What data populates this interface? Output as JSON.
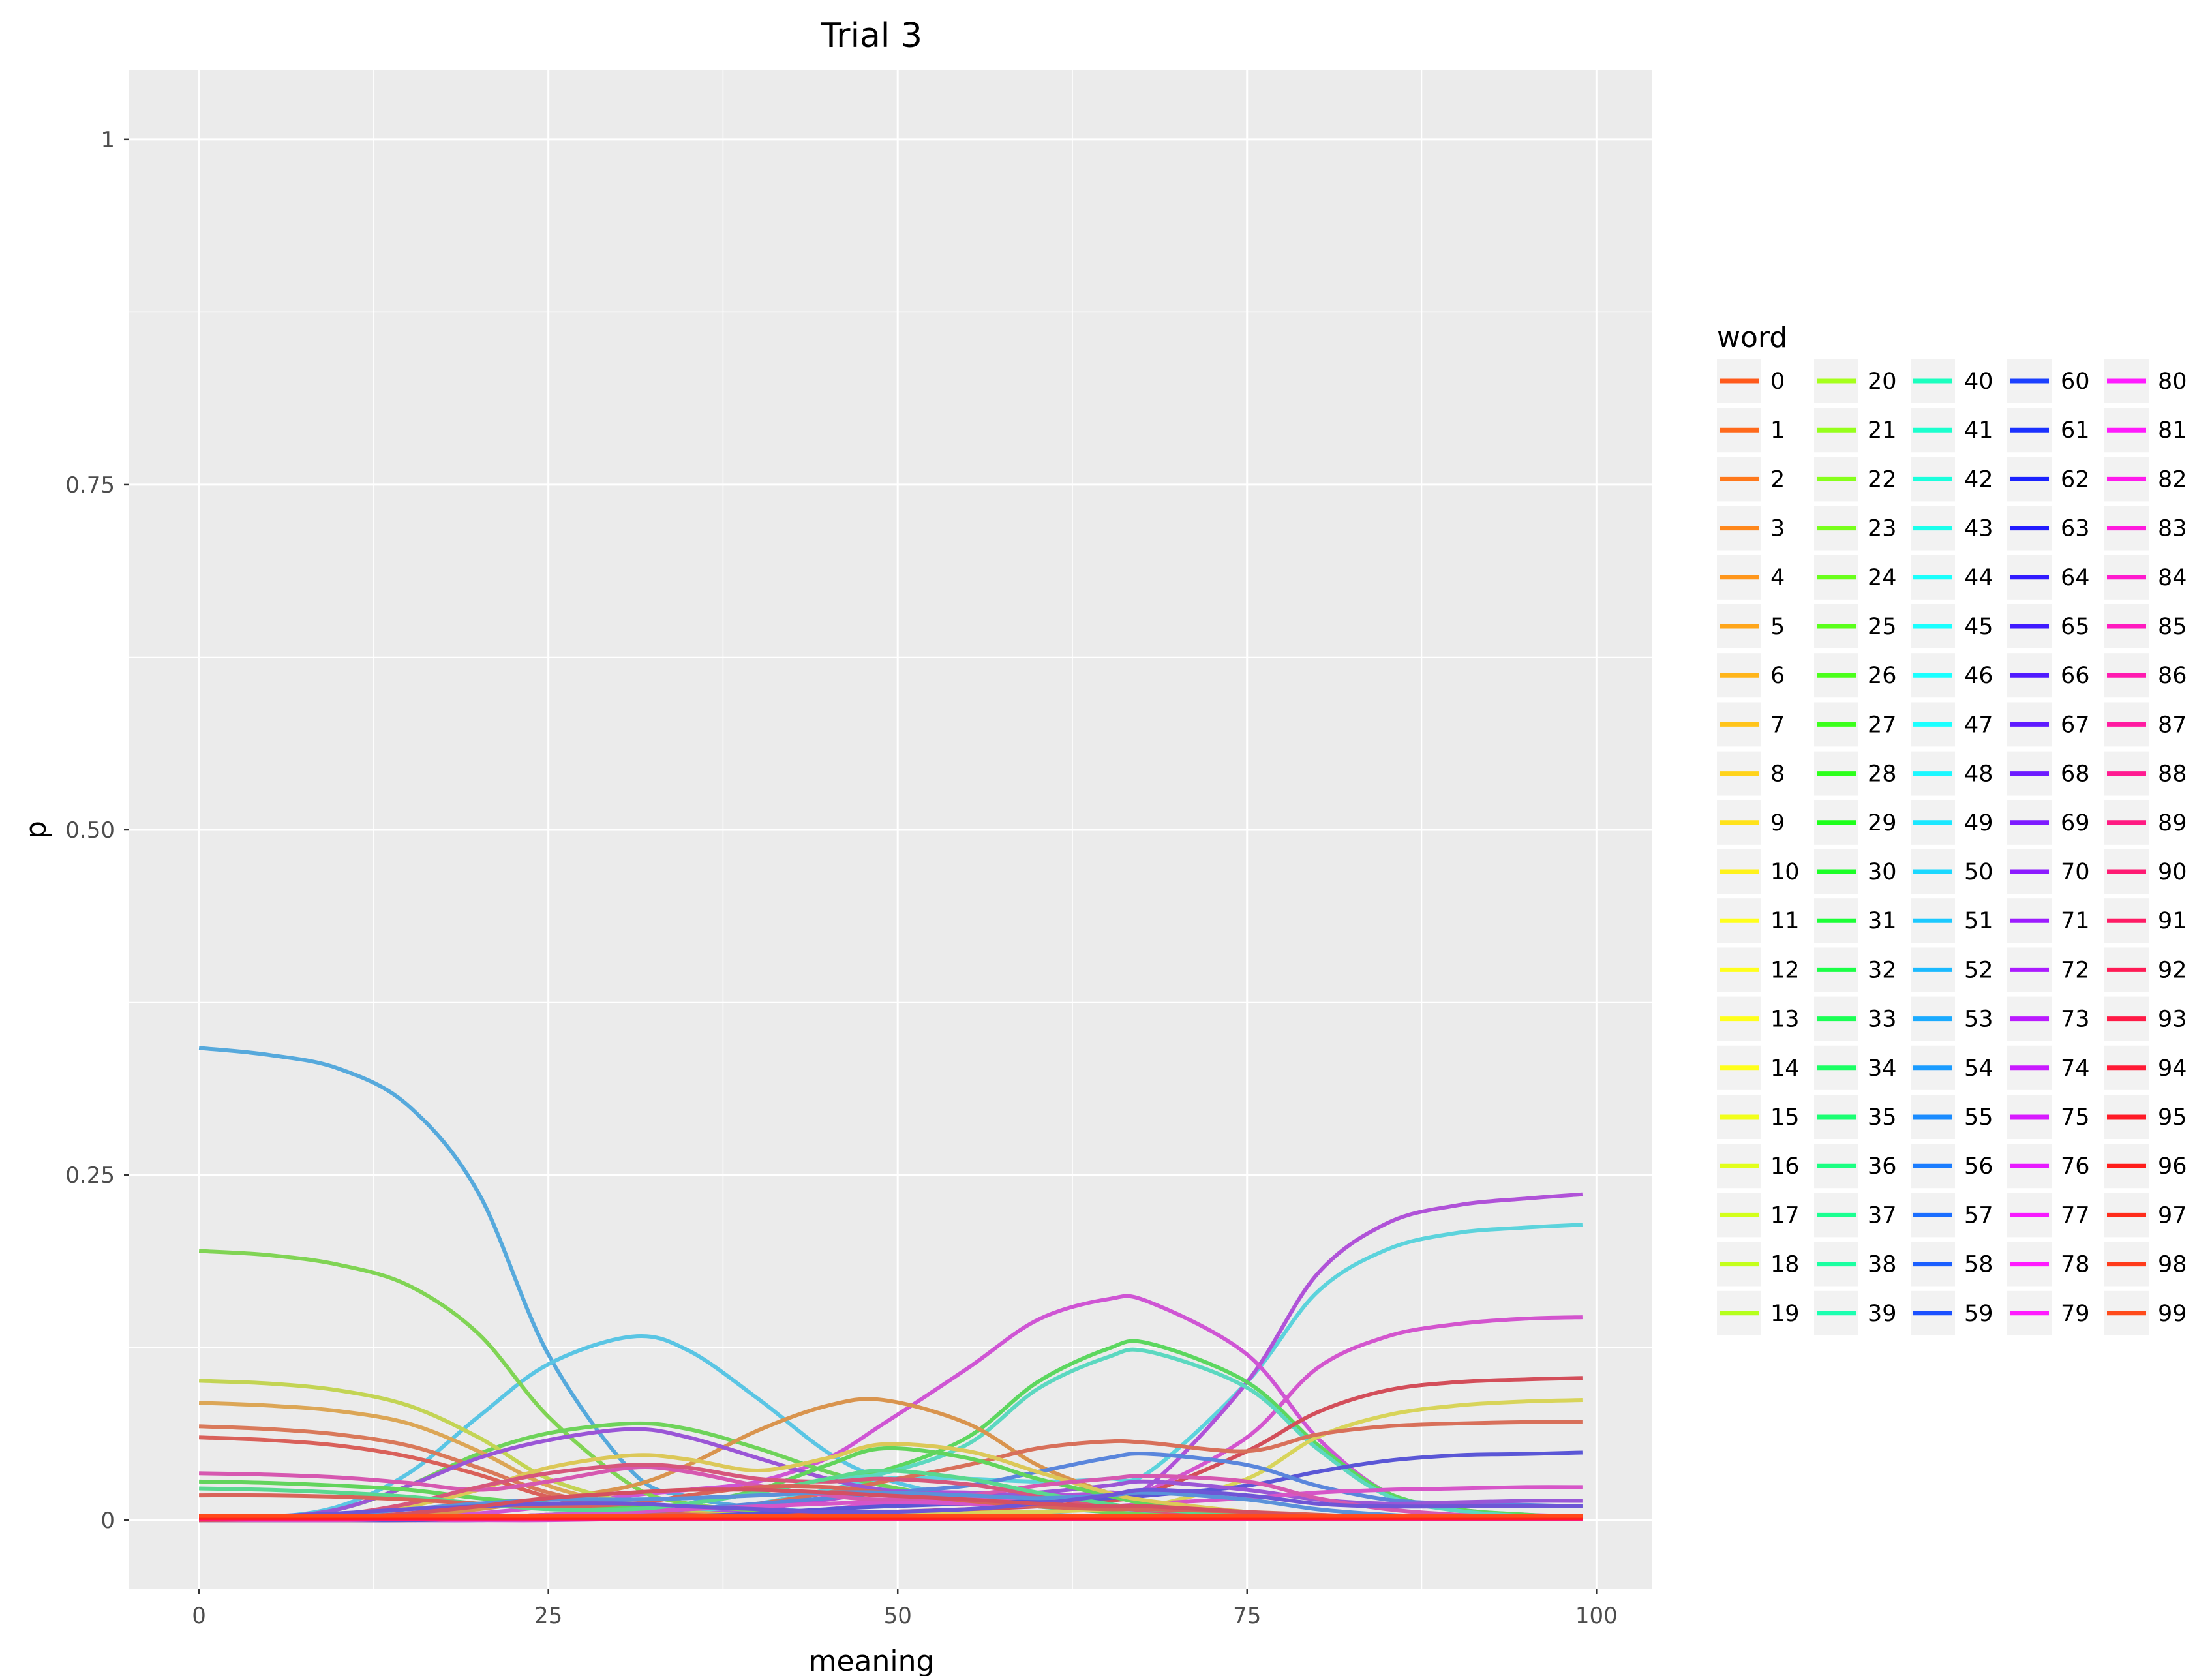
{
  "chart_data": {
    "type": "line",
    "title": "Trial 3",
    "xlabel": "meaning",
    "ylabel": "p",
    "xlim": [
      -5,
      104
    ],
    "ylim": [
      -0.05,
      1.05
    ],
    "x_ticks": [
      0,
      25,
      50,
      75,
      100
    ],
    "x_tick_labels": [
      "0",
      "25",
      "50",
      "75",
      "100"
    ],
    "y_ticks": [
      0,
      0.25,
      0.5,
      0.75,
      1
    ],
    "y_tick_labels": [
      "0",
      "0.25",
      "0.50",
      "0.75",
      "1"
    ],
    "grid": true,
    "legend_title": "word",
    "legend_position": "right",
    "legend_columns": 5,
    "legend_labels": [
      "0",
      "1",
      "2",
      "3",
      "4",
      "5",
      "6",
      "7",
      "8",
      "9",
      "10",
      "11",
      "12",
      "13",
      "14",
      "15",
      "16",
      "17",
      "18",
      "19",
      "20",
      "21",
      "22",
      "23",
      "24",
      "25",
      "26",
      "27",
      "28",
      "29",
      "30",
      "31",
      "32",
      "33",
      "34",
      "35",
      "36",
      "37",
      "38",
      "39",
      "40",
      "41",
      "42",
      "43",
      "44",
      "45",
      "46",
      "47",
      "48",
      "49",
      "50",
      "51",
      "52",
      "53",
      "54",
      "55",
      "56",
      "57",
      "58",
      "59",
      "60",
      "61",
      "62",
      "63",
      "64",
      "65",
      "66",
      "67",
      "68",
      "69",
      "70",
      "71",
      "72",
      "73",
      "74",
      "75",
      "76",
      "77",
      "78",
      "79",
      "80",
      "81",
      "82",
      "83",
      "84",
      "85",
      "86",
      "87",
      "88",
      "89",
      "90",
      "91",
      "92",
      "93",
      "94",
      "95",
      "96",
      "97",
      "98",
      "99"
    ],
    "x_range": [
      0,
      99
    ],
    "x": [
      0,
      5,
      10,
      15,
      20,
      25,
      31,
      35,
      40,
      45,
      49,
      55,
      60,
      65,
      68,
      75,
      80,
      85,
      90,
      95,
      99
    ],
    "series": [
      {
        "word": 55,
        "color": "#56a9dc",
        "values": [
          0.342,
          0.337,
          0.327,
          0.3,
          0.237,
          0.12,
          0.035,
          0.017,
          0.009,
          0.006,
          0.005,
          0.005,
          0.004,
          0.003,
          0.003,
          0.002,
          0.001,
          0.001,
          0.001,
          0.001,
          0.001
        ]
      },
      {
        "word": 52,
        "color": "#5ac5e4",
        "values": [
          0.0,
          0.002,
          0.01,
          0.034,
          0.075,
          0.113,
          0.133,
          0.123,
          0.088,
          0.049,
          0.03,
          0.016,
          0.01,
          0.006,
          0.005,
          0.003,
          0.002,
          0.001,
          0.001,
          0.001,
          0.001
        ]
      },
      {
        "word": 50,
        "color": "#5cd3dc",
        "values": [
          0.0,
          0.0,
          0.0,
          0.0,
          0.0,
          0.001,
          0.002,
          0.005,
          0.012,
          0.022,
          0.03,
          0.03,
          0.028,
          0.03,
          0.035,
          0.1,
          0.165,
          0.196,
          0.208,
          0.212,
          0.214
        ]
      },
      {
        "word": 77,
        "color": "#b052d8",
        "values": [
          0.0,
          0.0,
          0.0,
          0.0,
          0.0,
          0.001,
          0.002,
          0.004,
          0.008,
          0.015,
          0.02,
          0.02,
          0.018,
          0.02,
          0.025,
          0.1,
          0.178,
          0.215,
          0.228,
          0.233,
          0.236
        ]
      },
      {
        "word": 79,
        "color": "#cf55d4",
        "values": [
          0.0,
          0.0,
          0.001,
          0.002,
          0.005,
          0.01,
          0.018,
          0.022,
          0.028,
          0.045,
          0.07,
          0.11,
          0.145,
          0.16,
          0.158,
          0.12,
          0.06,
          0.02,
          0.008,
          0.004,
          0.003
        ]
      },
      {
        "word": 81,
        "color": "#d355ce",
        "values": [
          0.0,
          0.0,
          0.0,
          0.0,
          0.0,
          0.0,
          0.001,
          0.002,
          0.004,
          0.008,
          0.012,
          0.015,
          0.015,
          0.018,
          0.022,
          0.06,
          0.11,
          0.133,
          0.142,
          0.146,
          0.147
        ]
      },
      {
        "word": 26,
        "color": "#80d454",
        "values": [
          0.195,
          0.192,
          0.185,
          0.17,
          0.135,
          0.075,
          0.025,
          0.012,
          0.007,
          0.004,
          0.003,
          0.002,
          0.002,
          0.001,
          0.001,
          0.001,
          0.001,
          0.001,
          0.001,
          0.001,
          0.001
        ]
      },
      {
        "word": 29,
        "color": "#6ed35a",
        "values": [
          0.0,
          0.002,
          0.008,
          0.025,
          0.048,
          0.063,
          0.07,
          0.066,
          0.052,
          0.035,
          0.025,
          0.015,
          0.01,
          0.006,
          0.004,
          0.002,
          0.001,
          0.001,
          0.001,
          0.001,
          0.001
        ]
      },
      {
        "word": 33,
        "color": "#5cd75f",
        "values": [
          0.0,
          0.0,
          0.0,
          0.001,
          0.002,
          0.004,
          0.008,
          0.012,
          0.02,
          0.03,
          0.036,
          0.06,
          0.1,
          0.124,
          0.128,
          0.1,
          0.055,
          0.02,
          0.008,
          0.004,
          0.002
        ]
      },
      {
        "word": 45,
        "color": "#5cd8c0",
        "values": [
          0.0,
          0.0,
          0.0,
          0.001,
          0.002,
          0.004,
          0.008,
          0.012,
          0.02,
          0.03,
          0.034,
          0.055,
          0.095,
          0.118,
          0.122,
          0.096,
          0.052,
          0.018,
          0.007,
          0.003,
          0.002
        ]
      },
      {
        "word": 7,
        "color": "#d9944e",
        "values": [
          0.0,
          0.0,
          0.001,
          0.003,
          0.008,
          0.015,
          0.025,
          0.04,
          0.065,
          0.083,
          0.087,
          0.07,
          0.04,
          0.02,
          0.012,
          0.005,
          0.002,
          0.001,
          0.001,
          0.001,
          0.001
        ]
      },
      {
        "word": 18,
        "color": "#c3d454",
        "values": [
          0.101,
          0.099,
          0.094,
          0.083,
          0.06,
          0.03,
          0.012,
          0.006,
          0.004,
          0.002,
          0.002,
          0.001,
          0.001,
          0.001,
          0.001,
          0.001,
          0.001,
          0.001,
          0.001,
          0.001,
          0.001
        ]
      },
      {
        "word": 10,
        "color": "#dca656",
        "values": [
          0.085,
          0.083,
          0.079,
          0.07,
          0.05,
          0.025,
          0.01,
          0.005,
          0.003,
          0.002,
          0.002,
          0.001,
          0.001,
          0.001,
          0.001,
          0.001,
          0.001,
          0.001,
          0.001,
          0.001,
          0.001
        ]
      },
      {
        "word": 5,
        "color": "#d9795a",
        "values": [
          0.068,
          0.066,
          0.062,
          0.054,
          0.038,
          0.02,
          0.008,
          0.004,
          0.003,
          0.002,
          0.001,
          0.001,
          0.001,
          0.001,
          0.001,
          0.001,
          0.001,
          0.001,
          0.001,
          0.001,
          0.001
        ]
      },
      {
        "word": 1,
        "color": "#d9605a",
        "values": [
          0.06,
          0.058,
          0.054,
          0.046,
          0.033,
          0.017,
          0.007,
          0.004,
          0.002,
          0.002,
          0.001,
          0.001,
          0.001,
          0.001,
          0.001,
          0.001,
          0.001,
          0.001,
          0.001,
          0.001,
          0.001
        ]
      },
      {
        "word": 15,
        "color": "#d8d45a",
        "values": [
          0.0,
          0.0,
          0.0,
          0.0,
          0.001,
          0.001,
          0.002,
          0.003,
          0.004,
          0.005,
          0.006,
          0.006,
          0.006,
          0.008,
          0.01,
          0.03,
          0.06,
          0.076,
          0.083,
          0.086,
          0.087
        ]
      },
      {
        "word": 97,
        "color": "#d34e5a",
        "values": [
          0.0,
          0.0,
          0.0,
          0.0,
          0.001,
          0.001,
          0.002,
          0.003,
          0.004,
          0.006,
          0.006,
          0.008,
          0.01,
          0.014,
          0.02,
          0.05,
          0.078,
          0.094,
          0.1,
          0.102,
          0.103
        ]
      },
      {
        "word": 3,
        "color": "#d8705a",
        "values": [
          0.0,
          0.0,
          0.0,
          0.001,
          0.002,
          0.004,
          0.006,
          0.008,
          0.012,
          0.02,
          0.028,
          0.04,
          0.052,
          0.057,
          0.056,
          0.05,
          0.062,
          0.068,
          0.07,
          0.071,
          0.071
        ]
      },
      {
        "word": 66,
        "color": "#5a56d6",
        "values": [
          0.0,
          0.0,
          0.0,
          0.0,
          0.001,
          0.001,
          0.002,
          0.003,
          0.005,
          0.008,
          0.01,
          0.012,
          0.014,
          0.016,
          0.018,
          0.025,
          0.035,
          0.043,
          0.047,
          0.048,
          0.049
        ]
      },
      {
        "word": 60,
        "color": "#5a86dc",
        "values": [
          0.0,
          0.0,
          0.0,
          0.001,
          0.002,
          0.004,
          0.006,
          0.008,
          0.012,
          0.016,
          0.02,
          0.025,
          0.035,
          0.045,
          0.048,
          0.04,
          0.025,
          0.015,
          0.012,
          0.011,
          0.01
        ]
      },
      {
        "word": 74,
        "color": "#9a56d6",
        "values": [
          0.0,
          0.002,
          0.008,
          0.025,
          0.045,
          0.058,
          0.066,
          0.06,
          0.045,
          0.03,
          0.022,
          0.018,
          0.02,
          0.025,
          0.028,
          0.022,
          0.015,
          0.012,
          0.013,
          0.014,
          0.014
        ]
      },
      {
        "word": 84,
        "color": "#d655c8",
        "values": [
          0.0,
          0.0,
          0.0,
          0.001,
          0.002,
          0.004,
          0.006,
          0.008,
          0.01,
          0.012,
          0.013,
          0.012,
          0.01,
          0.01,
          0.012,
          0.016,
          0.02,
          0.022,
          0.023,
          0.024,
          0.024
        ]
      },
      {
        "word": 31,
        "color": "#62d45c",
        "values": [
          0.028,
          0.027,
          0.025,
          0.022,
          0.016,
          0.012,
          0.01,
          0.012,
          0.022,
          0.04,
          0.052,
          0.045,
          0.03,
          0.018,
          0.012,
          0.006,
          0.003,
          0.002,
          0.001,
          0.001,
          0.001
        ]
      },
      {
        "word": 14,
        "color": "#dcc858",
        "values": [
          0.0,
          0.001,
          0.003,
          0.01,
          0.022,
          0.038,
          0.047,
          0.044,
          0.036,
          0.045,
          0.055,
          0.05,
          0.035,
          0.02,
          0.014,
          0.006,
          0.003,
          0.002,
          0.001,
          0.001,
          0.001
        ]
      },
      {
        "word": 87,
        "color": "#d658b0",
        "values": [
          0.034,
          0.033,
          0.031,
          0.027,
          0.022,
          0.028,
          0.038,
          0.035,
          0.025,
          0.018,
          0.015,
          0.018,
          0.025,
          0.03,
          0.032,
          0.028,
          0.016,
          0.008,
          0.004,
          0.002,
          0.001
        ]
      },
      {
        "word": 91,
        "color": "#d6577c",
        "values": [
          0.0,
          0.001,
          0.004,
          0.012,
          0.024,
          0.034,
          0.04,
          0.038,
          0.03,
          0.028,
          0.03,
          0.026,
          0.018,
          0.01,
          0.007,
          0.003,
          0.002,
          0.001,
          0.001,
          0.001,
          0.001
        ]
      },
      {
        "word": 40,
        "color": "#5ad88f",
        "values": [
          0.023,
          0.022,
          0.02,
          0.017,
          0.012,
          0.008,
          0.008,
          0.012,
          0.02,
          0.03,
          0.036,
          0.03,
          0.02,
          0.012,
          0.008,
          0.004,
          0.002,
          0.001,
          0.001,
          0.001,
          0.001
        ]
      },
      {
        "word": 2,
        "color": "#d8645a",
        "values": [
          0.018,
          0.018,
          0.017,
          0.015,
          0.012,
          0.01,
          0.012,
          0.018,
          0.024,
          0.024,
          0.02,
          0.014,
          0.01,
          0.008,
          0.008,
          0.006,
          0.004,
          0.002,
          0.001,
          0.001,
          0.001
        ]
      },
      {
        "word": 57,
        "color": "#5a92da",
        "values": [
          0.001,
          0.002,
          0.004,
          0.008,
          0.012,
          0.015,
          0.015,
          0.016,
          0.018,
          0.02,
          0.02,
          0.018,
          0.016,
          0.018,
          0.02,
          0.015,
          0.008,
          0.004,
          0.002,
          0.001,
          0.001
        ]
      },
      {
        "word": 69,
        "color": "#6e56d6",
        "values": [
          0.002,
          0.003,
          0.005,
          0.008,
          0.01,
          0.012,
          0.012,
          0.01,
          0.008,
          0.006,
          0.006,
          0.008,
          0.012,
          0.018,
          0.022,
          0.018,
          0.012,
          0.01,
          0.01,
          0.01,
          0.01
        ]
      },
      {
        "word": 95,
        "color": "#d45062",
        "values": [
          0.0,
          0.001,
          0.002,
          0.005,
          0.01,
          0.016,
          0.02,
          0.022,
          0.022,
          0.02,
          0.018,
          0.015,
          0.012,
          0.01,
          0.01,
          0.006,
          0.003,
          0.002,
          0.001,
          0.001,
          0.001
        ]
      }
    ]
  }
}
